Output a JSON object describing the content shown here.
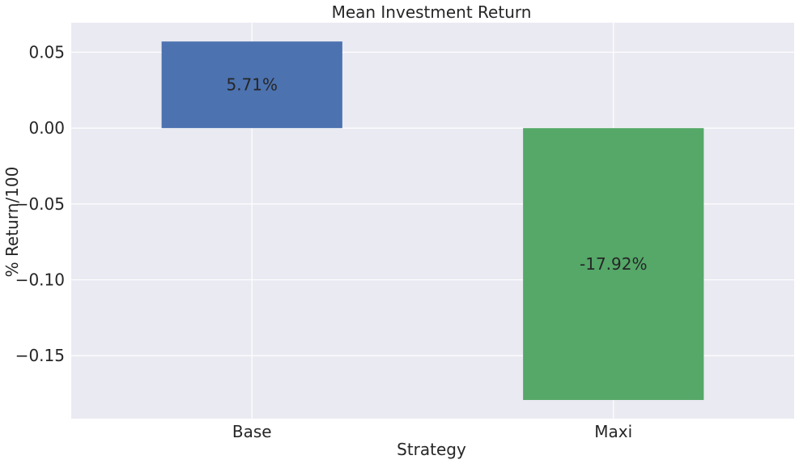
{
  "chart_data": {
    "type": "bar",
    "title": "Mean Investment Return",
    "xlabel": "Strategy",
    "ylabel": "% Return/100",
    "categories": [
      "Base",
      "Maxi"
    ],
    "values": [
      0.0571,
      -0.1792
    ],
    "bar_labels": [
      "5.71%",
      "-17.92%"
    ],
    "colors": [
      "#4c72b0",
      "#55a868"
    ],
    "yticks": [
      -0.15,
      -0.1,
      -0.05,
      0.0,
      0.05
    ],
    "ytick_labels": [
      "−0.15",
      "−0.10",
      "−0.05",
      "0.00",
      "0.05"
    ],
    "ylim": [
      -0.1915,
      0.0695
    ],
    "grid": true,
    "background": "#eaeaf2",
    "grid_color": "#ffffff",
    "legend": null
  }
}
